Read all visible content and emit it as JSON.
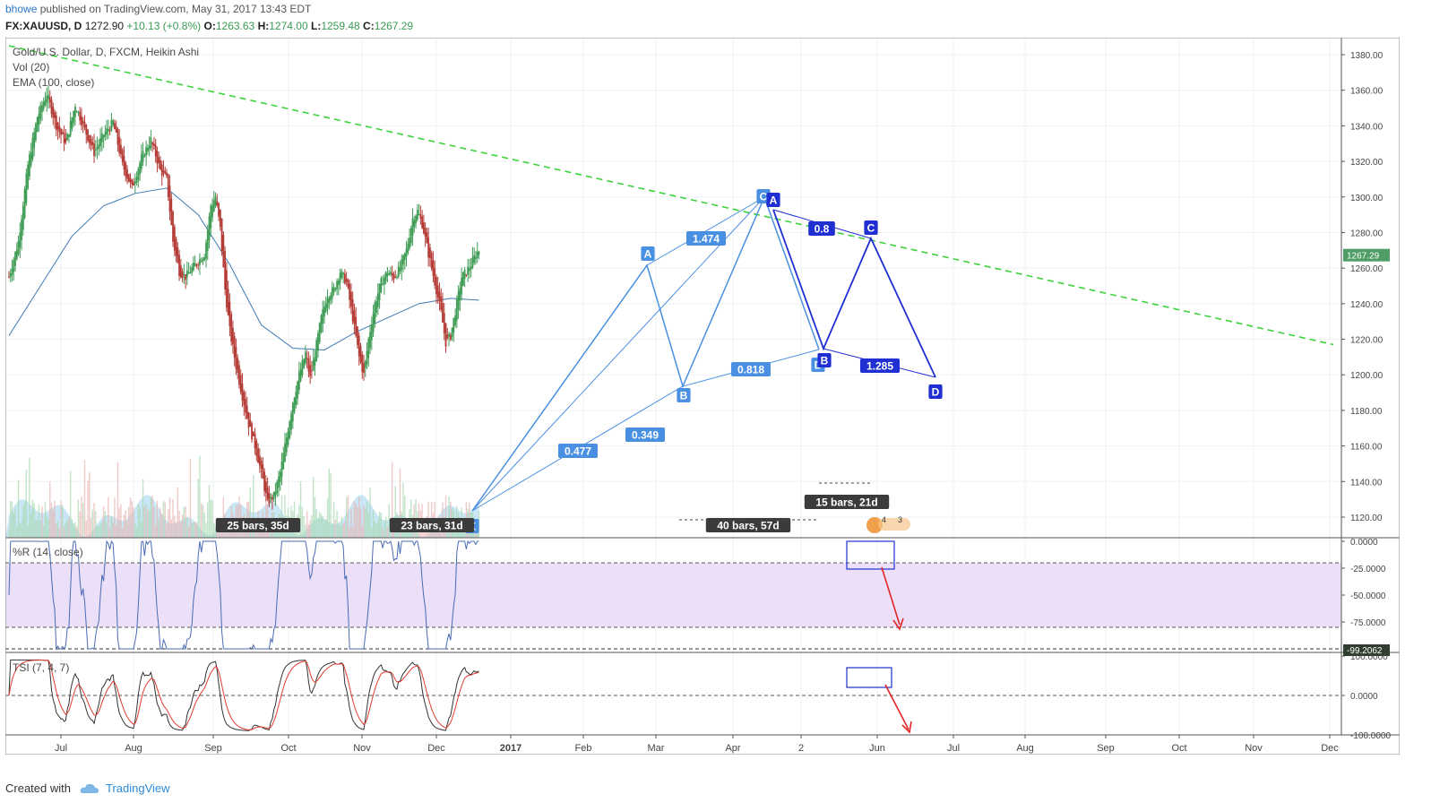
{
  "header": {
    "user": "bhowe",
    "published_text": "published on TradingView.com, May 31, 2017 13:43 EDT",
    "symbol": "FX:XAUUSD, D",
    "last": "1272.90",
    "change": "+10.13 (+0.8%)",
    "ohlc": [
      {
        "k": "O:",
        "v": "1263.63"
      },
      {
        "k": "H:",
        "v": "1274.00"
      },
      {
        "k": "L:",
        "v": "1259.48"
      },
      {
        "k": "C:",
        "v": "1267.29"
      }
    ]
  },
  "legend": {
    "line1": "Gold/U.S. Dollar, D, FXCM, Heikin Ashi",
    "line2": "Vol (20)",
    "line3": "EMA (100, close)",
    "wr_label": "%R (14, close)",
    "tsi_label": "TSI (7, 4, 7)"
  },
  "colors": {
    "up": "#3f9c55",
    "down": "#b43b35",
    "trend": "#3dd33d",
    "pattern_light": "#4a90e2",
    "pattern_dark": "#1f2fd1",
    "ema": "#3f7bb5",
    "wr_band": "#ece0f8",
    "tsi_signal": "#e03a2e",
    "price_tag": "#4f9e67",
    "arrow": "#e22525"
  },
  "chart_data": [
    {
      "type": "candlestick",
      "title": "Gold/U.S. Dollar, D, FXCM, Heikin Ashi",
      "y_axis_ticks": [
        "1380.00",
        "1360.00",
        "1340.00",
        "1320.00",
        "1300.00",
        "1280.00",
        "1260.00",
        "1240.00",
        "1220.00",
        "1200.00",
        "1180.00",
        "1160.00",
        "1140.00",
        "1120.00"
      ],
      "ylim": [
        1110,
        1388
      ],
      "x_axis_ticks": [
        "Jul",
        "Aug",
        "Sep",
        "Oct",
        "Nov",
        "Dec",
        "2017",
        "Feb",
        "Mar",
        "Apr",
        "2",
        "Jun",
        "Jul",
        "Aug",
        "Sep",
        "Oct",
        "Nov",
        "Dec"
      ],
      "current_price_label": "1267.29",
      "close_path": [
        [
          0,
          1255
        ],
        [
          6,
          1275
        ],
        [
          12,
          1318
        ],
        [
          18,
          1345
        ],
        [
          24,
          1358
        ],
        [
          30,
          1340
        ],
        [
          36,
          1330
        ],
        [
          42,
          1352
        ],
        [
          48,
          1338
        ],
        [
          54,
          1325
        ],
        [
          60,
          1335
        ],
        [
          66,
          1342
        ],
        [
          72,
          1318
        ],
        [
          78,
          1305
        ],
        [
          84,
          1322
        ],
        [
          90,
          1332
        ],
        [
          96,
          1315
        ],
        [
          100,
          1310
        ],
        [
          104,
          1275
        ],
        [
          108,
          1258
        ],
        [
          112,
          1255
        ],
        [
          118,
          1262
        ],
        [
          124,
          1268
        ],
        [
          128,
          1295
        ],
        [
          131,
          1300
        ],
        [
          134,
          1282
        ],
        [
          137,
          1248
        ],
        [
          140,
          1225
        ],
        [
          144,
          1205
        ],
        [
          148,
          1188
        ],
        [
          152,
          1172
        ],
        [
          156,
          1160
        ],
        [
          160,
          1145
        ],
        [
          164,
          1128
        ],
        [
          168,
          1132
        ],
        [
          172,
          1145
        ],
        [
          176,
          1165
        ],
        [
          180,
          1185
        ],
        [
          184,
          1200
        ],
        [
          188,
          1212
        ],
        [
          191,
          1198
        ],
        [
          194,
          1212
        ],
        [
          198,
          1232
        ],
        [
          202,
          1245
        ],
        [
          206,
          1248
        ],
        [
          210,
          1258
        ],
        [
          214,
          1252
        ],
        [
          218,
          1232
        ],
        [
          222,
          1210
        ],
        [
          225,
          1200
        ],
        [
          228,
          1220
        ],
        [
          232,
          1240
        ],
        [
          236,
          1252
        ],
        [
          240,
          1258
        ],
        [
          244,
          1255
        ],
        [
          248,
          1260
        ],
        [
          252,
          1270
        ],
        [
          256,
          1288
        ],
        [
          259,
          1292
        ],
        [
          262,
          1285
        ],
        [
          266,
          1268
        ],
        [
          270,
          1252
        ],
        [
          274,
          1235
        ],
        [
          277,
          1218
        ],
        [
          280,
          1222
        ],
        [
          284,
          1240
        ],
        [
          287,
          1255
        ],
        [
          290,
          1258
        ],
        [
          293,
          1262
        ],
        [
          296,
          1268
        ],
        [
          298,
          1270
        ]
      ],
      "ema_100": [
        [
          0,
          1222
        ],
        [
          20,
          1250
        ],
        [
          40,
          1278
        ],
        [
          60,
          1295
        ],
        [
          80,
          1302
        ],
        [
          100,
          1305
        ],
        [
          120,
          1290
        ],
        [
          140,
          1262
        ],
        [
          160,
          1228
        ],
        [
          180,
          1215
        ],
        [
          200,
          1214
        ],
        [
          220,
          1224
        ],
        [
          240,
          1232
        ],
        [
          260,
          1240
        ],
        [
          280,
          1243
        ],
        [
          298,
          1242
        ]
      ],
      "trendline": {
        "style": "dashed",
        "points": [
          [
            0,
            1385
          ],
          [
            350,
            1217
          ]
        ]
      },
      "volume_label": "Vol (20)",
      "pattern_labels": [
        {
          "text": "X",
          "kind": "point"
        },
        {
          "text": "A",
          "kind": "point"
        },
        {
          "text": "B",
          "kind": "point"
        },
        {
          "text": "C",
          "kind": "point"
        },
        {
          "text": "D",
          "kind": "point"
        },
        {
          "text": "1.474",
          "kind": "ratio"
        },
        {
          "text": "0.818",
          "kind": "ratio"
        },
        {
          "text": "0.477",
          "kind": "ratio"
        },
        {
          "text": "0.349",
          "kind": "ratio"
        },
        {
          "text": "0.8",
          "kind": "ratio"
        },
        {
          "text": "1.285",
          "kind": "ratio"
        }
      ],
      "range_labels": [
        "25 bars, 35d",
        "23 bars, 31d",
        "40 bars, 57d",
        "15 bars, 21d"
      ]
    },
    {
      "type": "line",
      "name": "%R (14, close)",
      "y_axis_ticks": [
        "0.0000",
        "-25.0000",
        "-50.0000",
        "-75.0000"
      ],
      "ylim": [
        -100,
        0
      ],
      "current_value_label": "-99.2062",
      "levels": [
        -20,
        -80
      ]
    },
    {
      "type": "line",
      "name": "TSI (7, 4, 7)",
      "y_axis_ticks": [
        "100.0000",
        "0.0000",
        "-100.0000"
      ],
      "ylim": [
        -100,
        100
      ]
    }
  ],
  "footer": {
    "created_with": "Created with",
    "brand": "TradingView"
  },
  "badge": {
    "left": "4",
    "right": "3"
  }
}
